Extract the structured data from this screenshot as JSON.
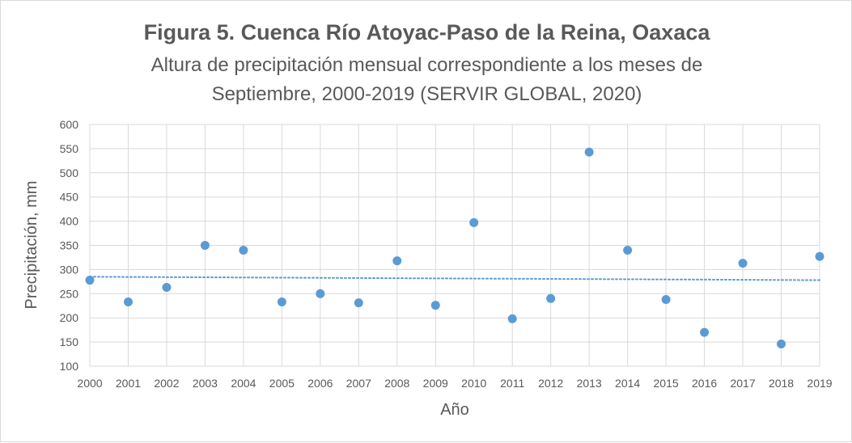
{
  "chart_data": {
    "type": "scatter",
    "title": "Figura 5.  Cuenca Río Atoyac-Paso de la Reina, Oaxaca",
    "subtitle_line1": "Altura de precipitación mensual correspondiente a los meses de",
    "subtitle_line2": "Septiembre, 2000-2019  (SERVIR GLOBAL, 2020)",
    "xlabel": "Año",
    "ylabel": "Precipitación, mm",
    "xlim": [
      2000,
      2019
    ],
    "ylim": [
      100,
      600
    ],
    "ytick_step": 50,
    "grid": true,
    "series": [
      {
        "name": "Septiembre",
        "x": [
          2000,
          2001,
          2002,
          2003,
          2004,
          2005,
          2006,
          2007,
          2008,
          2009,
          2010,
          2011,
          2012,
          2013,
          2014,
          2015,
          2016,
          2017,
          2018,
          2019
        ],
        "y": [
          278,
          233,
          263,
          350,
          340,
          233,
          250,
          231,
          318,
          226,
          397,
          198,
          240,
          543,
          340,
          238,
          170,
          313,
          146,
          327
        ]
      }
    ],
    "trendline": {
      "type": "linear",
      "style": "dotted",
      "start": [
        2000,
        285
      ],
      "end": [
        2019,
        278
      ]
    },
    "colors": {
      "marker": "#5b9bd5",
      "trendline": "#5b9bd5",
      "grid": "#d9d9d9",
      "text": "#595959"
    }
  }
}
